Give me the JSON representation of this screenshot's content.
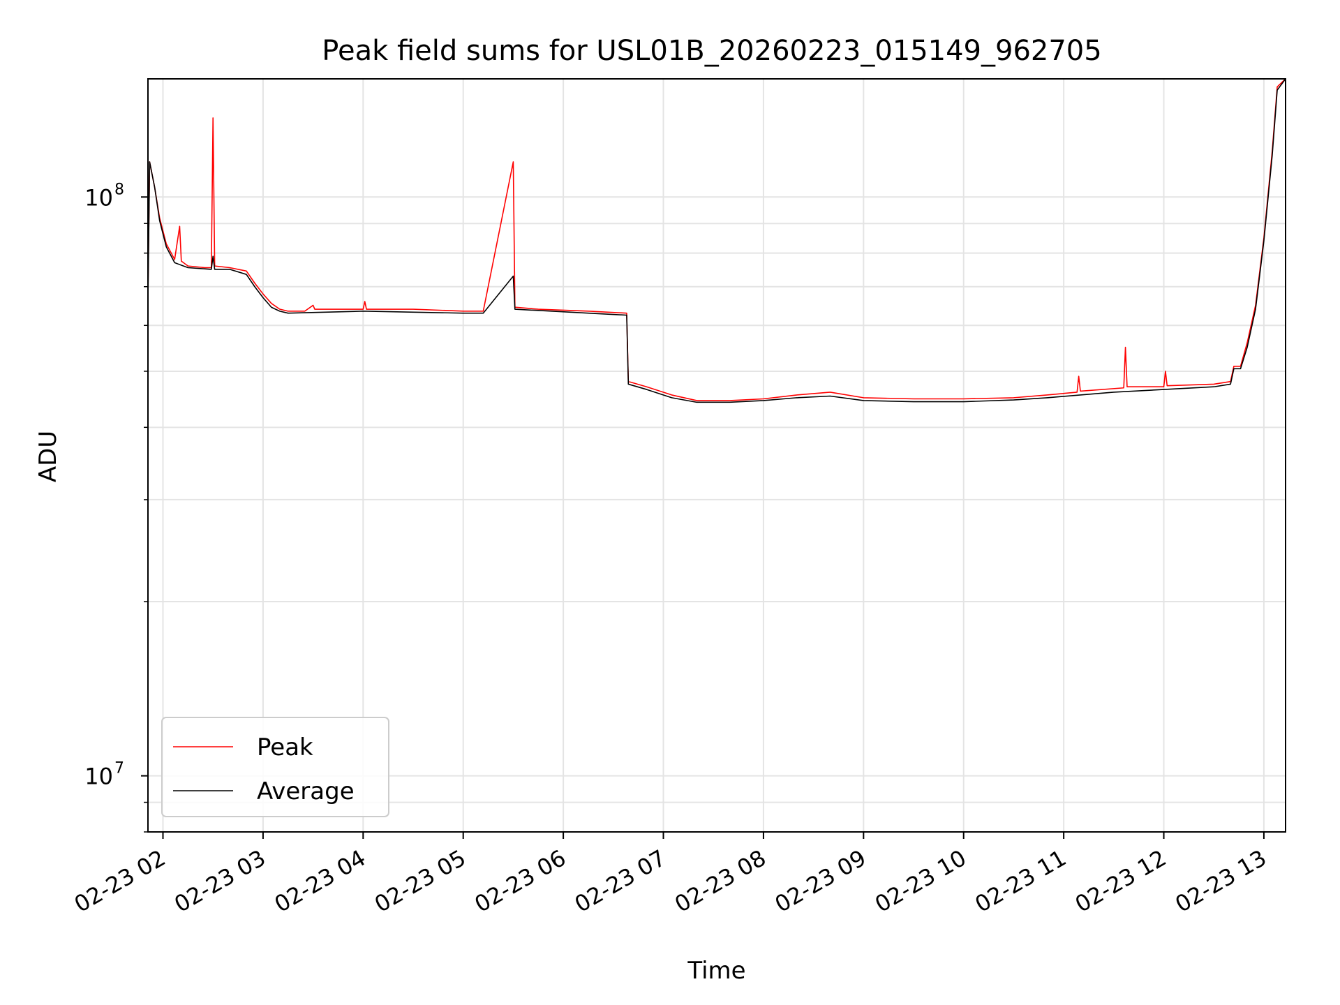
{
  "chart_data": {
    "type": "line",
    "title": "Peak field sums for USL01B_20260223_015149_962705",
    "xlabel": "Time",
    "ylabel": "ADU",
    "yscale": "log",
    "xlim": [
      "2026-02-23 01:51",
      "2026-02-23 13:13"
    ],
    "ylim": [
      8000000,
      160000000
    ],
    "grid": true,
    "legend_position": "lower-left",
    "x_ticks": [
      {
        "value": "2026-02-23 02:00",
        "label": "02-23 02"
      },
      {
        "value": "2026-02-23 03:00",
        "label": "02-23 03"
      },
      {
        "value": "2026-02-23 04:00",
        "label": "02-23 04"
      },
      {
        "value": "2026-02-23 05:00",
        "label": "02-23 05"
      },
      {
        "value": "2026-02-23 06:00",
        "label": "02-23 06"
      },
      {
        "value": "2026-02-23 07:00",
        "label": "02-23 07"
      },
      {
        "value": "2026-02-23 08:00",
        "label": "02-23 08"
      },
      {
        "value": "2026-02-23 09:00",
        "label": "02-23 09"
      },
      {
        "value": "2026-02-23 10:00",
        "label": "02-23 10"
      },
      {
        "value": "2026-02-23 11:00",
        "label": "02-23 11"
      },
      {
        "value": "2026-02-23 12:00",
        "label": "02-23 12"
      },
      {
        "value": "2026-02-23 13:00",
        "label": "02-23 13"
      }
    ],
    "y_ticks": [
      {
        "value": 10000000,
        "label": "10",
        "exp": "7"
      },
      {
        "value": 100000000,
        "label": "10",
        "exp": "8"
      }
    ],
    "series": [
      {
        "name": "Peak",
        "color": "#ff0000",
        "points": [
          [
            "2026-02-23 01:51",
            68000000
          ],
          [
            "2026-02-23 01:52",
            115000000
          ],
          [
            "2026-02-23 01:55",
            104000000
          ],
          [
            "2026-02-23 01:58",
            92000000
          ],
          [
            "2026-02-23 02:02",
            83000000
          ],
          [
            "2026-02-23 02:07",
            78000000
          ],
          [
            "2026-02-23 02:10",
            89000000
          ],
          [
            "2026-02-23 02:11",
            77500000
          ],
          [
            "2026-02-23 02:15",
            76000000
          ],
          [
            "2026-02-23 02:25",
            75500000
          ],
          [
            "2026-02-23 02:29",
            75500000
          ],
          [
            "2026-02-23 02:30",
            137000000
          ],
          [
            "2026-02-23 02:31",
            76000000
          ],
          [
            "2026-02-23 02:40",
            75500000
          ],
          [
            "2026-02-23 02:50",
            74500000
          ],
          [
            "2026-02-23 02:55",
            71000000
          ],
          [
            "2026-02-23 03:00",
            68000000
          ],
          [
            "2026-02-23 03:05",
            65500000
          ],
          [
            "2026-02-23 03:10",
            64000000
          ],
          [
            "2026-02-23 03:15",
            63500000
          ],
          [
            "2026-02-23 03:25",
            63500000
          ],
          [
            "2026-02-23 03:30",
            65000000
          ],
          [
            "2026-02-23 03:31",
            64000000
          ],
          [
            "2026-02-23 04:00",
            64000000
          ],
          [
            "2026-02-23 04:01",
            66000000
          ],
          [
            "2026-02-23 04:02",
            64000000
          ],
          [
            "2026-02-23 04:30",
            64000000
          ],
          [
            "2026-02-23 05:00",
            63500000
          ],
          [
            "2026-02-23 05:12",
            63500000
          ],
          [
            "2026-02-23 05:30",
            115000000
          ],
          [
            "2026-02-23 05:31",
            64500000
          ],
          [
            "2026-02-23 05:45",
            64000000
          ],
          [
            "2026-02-23 06:15",
            63500000
          ],
          [
            "2026-02-23 06:38",
            63000000
          ],
          [
            "2026-02-23 06:39",
            48000000
          ],
          [
            "2026-02-23 06:50",
            47000000
          ],
          [
            "2026-02-23 07:05",
            45500000
          ],
          [
            "2026-02-23 07:20",
            44500000
          ],
          [
            "2026-02-23 07:40",
            44500000
          ],
          [
            "2026-02-23 08:00",
            44800000
          ],
          [
            "2026-02-23 08:20",
            45500000
          ],
          [
            "2026-02-23 08:40",
            46000000
          ],
          [
            "2026-02-23 09:00",
            45000000
          ],
          [
            "2026-02-23 09:30",
            44800000
          ],
          [
            "2026-02-23 10:00",
            44800000
          ],
          [
            "2026-02-23 10:30",
            45000000
          ],
          [
            "2026-02-23 10:50",
            45500000
          ],
          [
            "2026-02-23 11:08",
            46000000
          ],
          [
            "2026-02-23 11:09",
            49000000
          ],
          [
            "2026-02-23 11:10",
            46200000
          ],
          [
            "2026-02-23 11:36",
            46800000
          ],
          [
            "2026-02-23 11:37",
            55000000
          ],
          [
            "2026-02-23 11:38",
            47000000
          ],
          [
            "2026-02-23 12:00",
            47000000
          ],
          [
            "2026-02-23 12:01",
            50000000
          ],
          [
            "2026-02-23 12:02",
            47200000
          ],
          [
            "2026-02-23 12:30",
            47500000
          ],
          [
            "2026-02-23 12:40",
            48000000
          ],
          [
            "2026-02-23 12:42",
            51000000
          ],
          [
            "2026-02-23 12:46",
            51000000
          ],
          [
            "2026-02-23 12:50",
            56000000
          ],
          [
            "2026-02-23 12:55",
            65000000
          ],
          [
            "2026-02-23 13:00",
            85000000
          ],
          [
            "2026-02-23 13:05",
            120000000
          ],
          [
            "2026-02-23 13:08",
            155000000
          ],
          [
            "2026-02-23 13:13",
            160000000
          ]
        ]
      },
      {
        "name": "Average",
        "color": "#000000",
        "points": [
          [
            "2026-02-23 01:51",
            66000000
          ],
          [
            "2026-02-23 01:52",
            115000000
          ],
          [
            "2026-02-23 01:55",
            104000000
          ],
          [
            "2026-02-23 01:58",
            91000000
          ],
          [
            "2026-02-23 02:02",
            82000000
          ],
          [
            "2026-02-23 02:07",
            77000000
          ],
          [
            "2026-02-23 02:15",
            75500000
          ],
          [
            "2026-02-23 02:29",
            75000000
          ],
          [
            "2026-02-23 02:30",
            79000000
          ],
          [
            "2026-02-23 02:31",
            75000000
          ],
          [
            "2026-02-23 02:40",
            75000000
          ],
          [
            "2026-02-23 02:50",
            73500000
          ],
          [
            "2026-02-23 02:55",
            70000000
          ],
          [
            "2026-02-23 03:00",
            67000000
          ],
          [
            "2026-02-23 03:05",
            64500000
          ],
          [
            "2026-02-23 03:10",
            63500000
          ],
          [
            "2026-02-23 03:15",
            63000000
          ],
          [
            "2026-02-23 04:00",
            63500000
          ],
          [
            "2026-02-23 05:00",
            63000000
          ],
          [
            "2026-02-23 05:12",
            63000000
          ],
          [
            "2026-02-23 05:30",
            73000000
          ],
          [
            "2026-02-23 05:31",
            64000000
          ],
          [
            "2026-02-23 06:15",
            63000000
          ],
          [
            "2026-02-23 06:38",
            62500000
          ],
          [
            "2026-02-23 06:39",
            47500000
          ],
          [
            "2026-02-23 06:50",
            46500000
          ],
          [
            "2026-02-23 07:05",
            45000000
          ],
          [
            "2026-02-23 07:20",
            44200000
          ],
          [
            "2026-02-23 07:40",
            44200000
          ],
          [
            "2026-02-23 08:00",
            44500000
          ],
          [
            "2026-02-23 08:20",
            45000000
          ],
          [
            "2026-02-23 08:40",
            45300000
          ],
          [
            "2026-02-23 09:00",
            44500000
          ],
          [
            "2026-02-23 09:30",
            44300000
          ],
          [
            "2026-02-23 10:00",
            44300000
          ],
          [
            "2026-02-23 10:30",
            44600000
          ],
          [
            "2026-02-23 10:50",
            45000000
          ],
          [
            "2026-02-23 11:30",
            46000000
          ],
          [
            "2026-02-23 12:00",
            46500000
          ],
          [
            "2026-02-23 12:30",
            47000000
          ],
          [
            "2026-02-23 12:40",
            47500000
          ],
          [
            "2026-02-23 12:42",
            50500000
          ],
          [
            "2026-02-23 12:46",
            50500000
          ],
          [
            "2026-02-23 12:50",
            55000000
          ],
          [
            "2026-02-23 12:55",
            64000000
          ],
          [
            "2026-02-23 13:00",
            84000000
          ],
          [
            "2026-02-23 13:05",
            118000000
          ],
          [
            "2026-02-23 13:08",
            153000000
          ],
          [
            "2026-02-23 13:13",
            160000000
          ]
        ]
      }
    ]
  }
}
